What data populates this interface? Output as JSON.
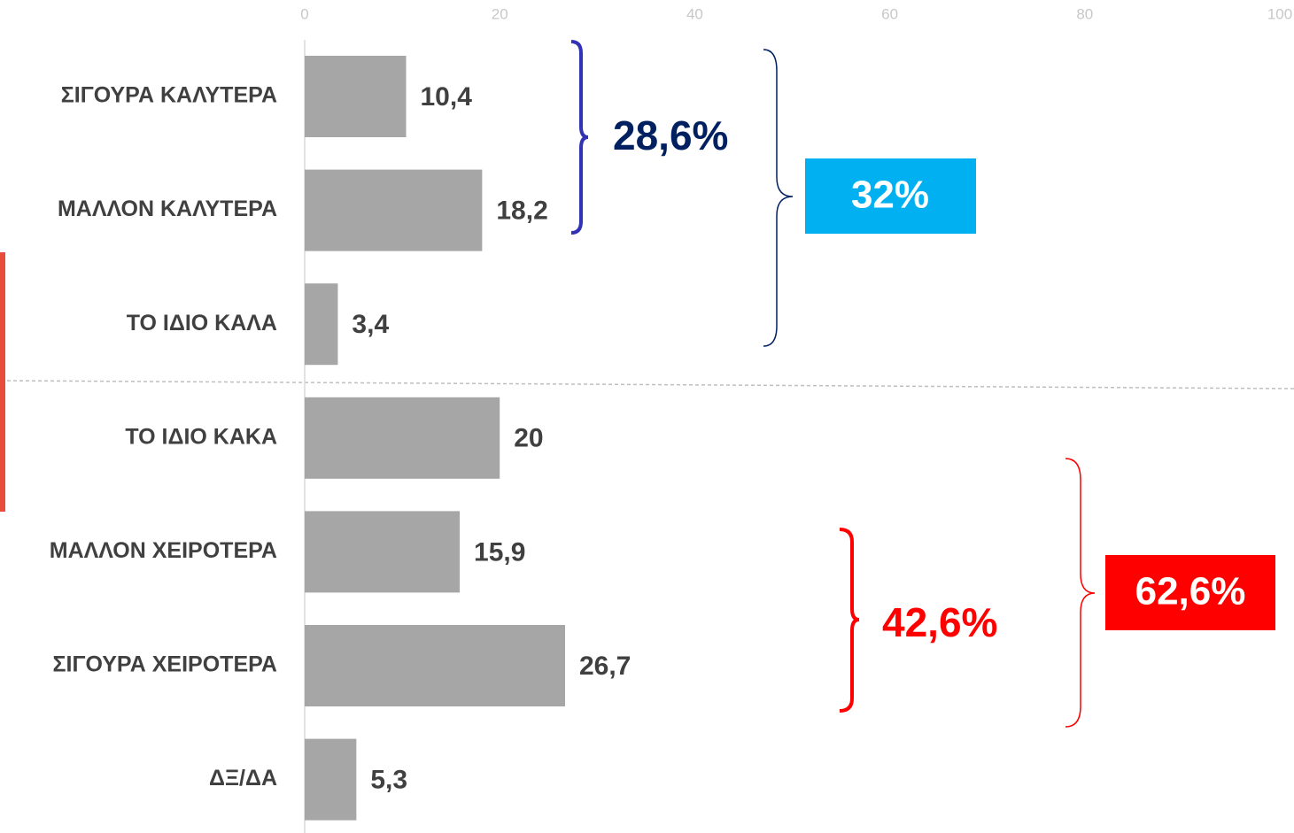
{
  "chart_data": {
    "type": "bar",
    "orientation": "horizontal",
    "categories": [
      "ΣΙΓΟΥΡΑ ΚΑΛΥΤΕΡΑ",
      "ΜΑΛΛΟΝ ΚΑΛΥΤΕΡΑ",
      "ΤΟ ΙΔΙΟ ΚΑΛΑ",
      "ΤΟ ΙΔΙΟ ΚΑΚΑ",
      "ΜΑΛΛΟΝ ΧΕΙΡΟΤΕΡΑ",
      "ΣΙΓΟΥΡΑ ΧΕΙΡΟΤΕΡΑ",
      "ΔΞ/ΔΑ"
    ],
    "values": [
      10.4,
      18.2,
      3.4,
      20,
      15.9,
      26.7,
      5.3
    ],
    "value_labels": [
      "10,4",
      "18,2",
      "3,4",
      "20",
      "15,9",
      "26,7",
      "5,3"
    ],
    "color": "#a6a6a6",
    "xlim": [
      0,
      100
    ],
    "xticks": [
      0,
      20,
      40,
      60,
      80,
      100
    ],
    "annotations": [
      "28,6%",
      "32%",
      "42,6%",
      "62,6%"
    ]
  }
}
